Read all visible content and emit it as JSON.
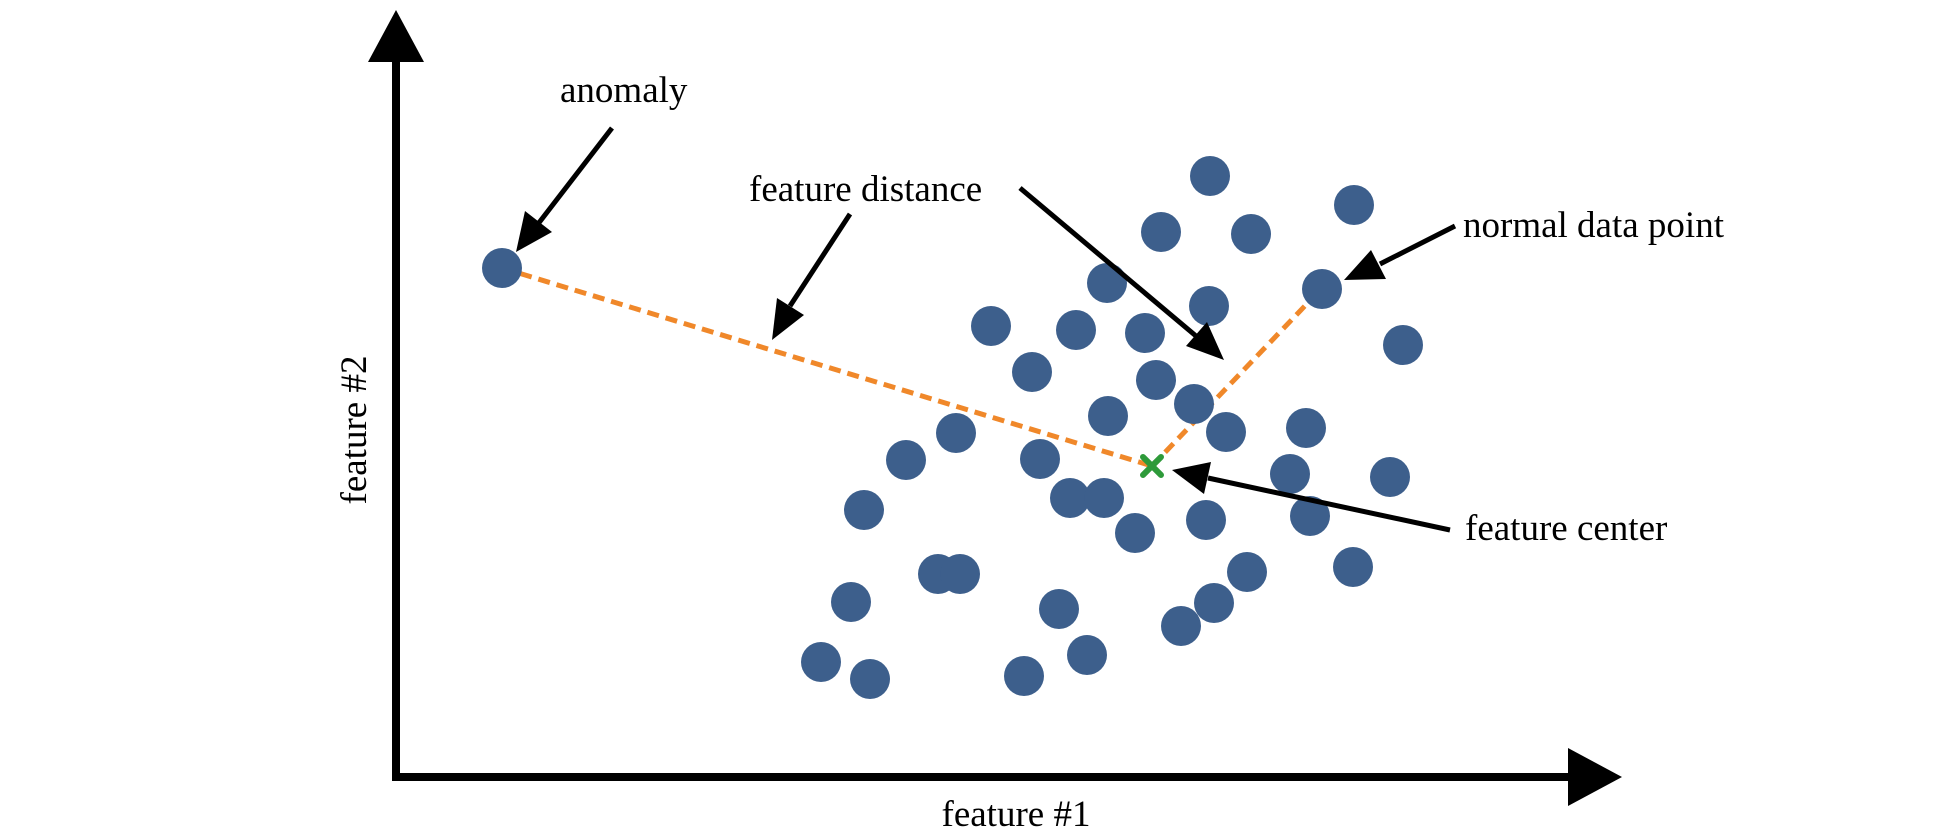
{
  "labels": {
    "x_axis": "feature #1",
    "y_axis": "feature #2",
    "anomaly": "anomaly",
    "feature_distance": "feature distance",
    "normal_data_point": "normal data point",
    "feature_center": "feature center"
  },
  "colors": {
    "point": "#3d5f8c",
    "distance_line": "#f0882a",
    "center_marker": "#2e9a3a",
    "axis": "#000000",
    "arrow": "#000000",
    "text": "#000000"
  }
}
